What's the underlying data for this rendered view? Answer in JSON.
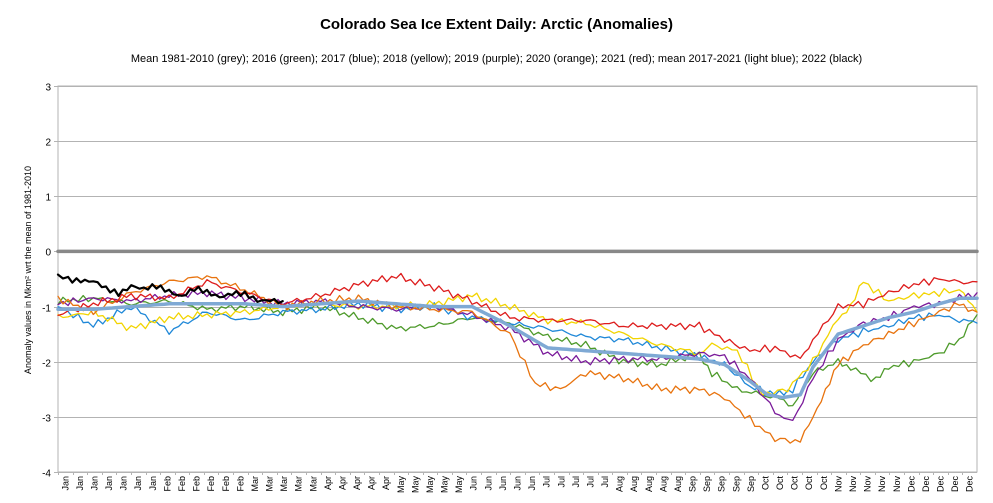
{
  "chart_data": {
    "type": "line",
    "title": "Colorado Sea Ice Extent Daily: Arctic (Anomalies)",
    "subtitle": "Mean 1981-2010 (grey); 2016 (green); 2017 (blue); 2018 (yellow); 2019 (purple); 2020 (orange); 2021 (red); mean 2017-2021 (light blue); 2022 (black)",
    "xlabel": "",
    "ylabel": "Anomaly values in Mkm² wrt the mean of 1981-2010",
    "ylim": [
      -4,
      3
    ],
    "xlim": [
      1,
      365
    ],
    "yticks": [
      3,
      2,
      1,
      0,
      -1,
      -2,
      -3,
      -4
    ],
    "x_tick_labels": [
      "Jan",
      "Jan",
      "Jan",
      "Jan",
      "Jan",
      "Jan",
      "Jan",
      "Feb",
      "Feb",
      "Feb",
      "Feb",
      "Feb",
      "Feb",
      "Mar",
      "Mar",
      "Mar",
      "Mar",
      "Mar",
      "Apr",
      "Apr",
      "Apr",
      "Apr",
      "Apr",
      "May",
      "May",
      "May",
      "May",
      "May",
      "Jun",
      "Jun",
      "Jun",
      "Jun",
      "Jun",
      "Jul",
      "Jul",
      "Jul",
      "Jul",
      "Jul",
      "Aug",
      "Aug",
      "Aug",
      "Aug",
      "Aug",
      "Sep",
      "Sep",
      "Sep",
      "Sep",
      "Sep",
      "Oct",
      "Oct",
      "Oct",
      "Oct",
      "Oct",
      "Nov",
      "Nov",
      "Nov",
      "Nov",
      "Nov",
      "Dec",
      "Dec",
      "Dec",
      "Dec",
      "Dec"
    ],
    "grid": true,
    "series": [
      {
        "name": "Mean 1981-2010",
        "color": "#888888",
        "width": 3.5,
        "x": [
          1,
          365
        ],
        "y": [
          0,
          0
        ]
      },
      {
        "name": "2016",
        "color": "#4d9a2a",
        "width": 1.3,
        "x": [
          1,
          15,
          30,
          45,
          60,
          75,
          90,
          105,
          120,
          135,
          150,
          165,
          180,
          195,
          210,
          225,
          240,
          255,
          260,
          270,
          285,
          292,
          300,
          310,
          315,
          325,
          330,
          340,
          350,
          358,
          365
        ],
        "y": [
          -0.9,
          -0.85,
          -0.95,
          -0.9,
          -1.05,
          -1.0,
          -1.1,
          -1.0,
          -1.2,
          -1.4,
          -1.35,
          -1.2,
          -1.3,
          -1.55,
          -1.7,
          -2.0,
          -2.05,
          -1.85,
          -2.2,
          -2.5,
          -2.65,
          -2.8,
          -2.2,
          -2.0,
          -2.1,
          -2.35,
          -2.1,
          -2.0,
          -1.85,
          -1.6,
          -1.15
        ]
      },
      {
        "name": "2017",
        "color": "#1f88d8",
        "width": 1.3,
        "x": [
          1,
          15,
          30,
          45,
          60,
          75,
          90,
          105,
          120,
          135,
          150,
          165,
          180,
          195,
          210,
          225,
          240,
          255,
          265,
          275,
          285,
          292,
          300,
          310,
          320,
          330,
          340,
          350,
          358,
          365
        ],
        "y": [
          -1.0,
          -1.35,
          -1.0,
          -1.45,
          -1.1,
          -1.25,
          -1.1,
          -1.05,
          -0.95,
          -1.05,
          -1.0,
          -1.2,
          -1.3,
          -1.4,
          -1.55,
          -1.6,
          -1.75,
          -1.9,
          -2.05,
          -2.45,
          -2.6,
          -2.5,
          -2.0,
          -1.6,
          -1.45,
          -1.35,
          -1.2,
          -1.15,
          -1.25,
          -1.3
        ]
      },
      {
        "name": "2018",
        "color": "#f2d400",
        "width": 1.3,
        "x": [
          1,
          15,
          30,
          45,
          60,
          75,
          90,
          105,
          120,
          135,
          150,
          165,
          180,
          195,
          210,
          225,
          240,
          255,
          260,
          270,
          280,
          290,
          300,
          310,
          315,
          320,
          330,
          340,
          350,
          358,
          365
        ],
        "y": [
          -1.2,
          -1.1,
          -1.4,
          -1.2,
          -1.15,
          -1.1,
          -1.0,
          -0.95,
          -1.0,
          -1.0,
          -0.95,
          -0.8,
          -1.0,
          -1.25,
          -1.3,
          -1.5,
          -1.7,
          -1.85,
          -1.7,
          -1.8,
          -2.6,
          -2.5,
          -2.0,
          -1.2,
          -1.0,
          -0.55,
          -0.9,
          -0.8,
          -0.75,
          -0.7,
          -1.1
        ]
      },
      {
        "name": "2019",
        "color": "#7a1a9a",
        "width": 1.3,
        "x": [
          1,
          15,
          30,
          45,
          60,
          75,
          90,
          105,
          120,
          135,
          150,
          165,
          180,
          195,
          210,
          225,
          240,
          255,
          265,
          275,
          285,
          292,
          300,
          310,
          320,
          330,
          340,
          350,
          358,
          365
        ],
        "y": [
          -0.95,
          -0.85,
          -0.9,
          -0.8,
          -0.75,
          -0.85,
          -0.95,
          -0.9,
          -1.0,
          -1.05,
          -1.0,
          -1.15,
          -1.4,
          -1.85,
          -2.0,
          -1.95,
          -1.95,
          -1.85,
          -1.9,
          -2.3,
          -2.9,
          -3.1,
          -2.3,
          -1.6,
          -1.3,
          -1.2,
          -1.0,
          -0.95,
          -0.85,
          -0.75
        ]
      },
      {
        "name": "2020",
        "color": "#e8730e",
        "width": 1.3,
        "x": [
          1,
          15,
          30,
          45,
          60,
          75,
          90,
          105,
          120,
          135,
          150,
          165,
          180,
          190,
          200,
          210,
          225,
          240,
          255,
          265,
          275,
          285,
          295,
          300,
          305,
          310,
          320,
          330,
          340,
          350,
          358,
          365
        ],
        "y": [
          -0.85,
          -1.1,
          -0.75,
          -0.55,
          -0.45,
          -0.7,
          -1.0,
          -0.9,
          -0.85,
          -1.0,
          -1.05,
          -1.1,
          -1.5,
          -2.4,
          -2.5,
          -2.2,
          -2.3,
          -2.5,
          -2.5,
          -2.65,
          -3.05,
          -3.4,
          -3.45,
          -3.0,
          -2.5,
          -2.05,
          -1.7,
          -1.5,
          -1.3,
          -1.1,
          -0.95,
          -1.1
        ]
      },
      {
        "name": "2021",
        "color": "#dd1c1c",
        "width": 1.3,
        "x": [
          1,
          15,
          30,
          45,
          60,
          75,
          90,
          105,
          120,
          135,
          150,
          165,
          180,
          195,
          210,
          225,
          240,
          255,
          265,
          275,
          285,
          295,
          300,
          310,
          320,
          330,
          340,
          350,
          358,
          365
        ],
        "y": [
          -1.15,
          -0.95,
          -0.8,
          -0.85,
          -0.55,
          -0.75,
          -0.95,
          -0.8,
          -0.6,
          -0.45,
          -0.65,
          -0.9,
          -1.2,
          -1.25,
          -1.25,
          -1.35,
          -1.35,
          -1.35,
          -1.6,
          -1.8,
          -1.75,
          -1.95,
          -1.6,
          -1.0,
          -0.95,
          -0.75,
          -0.6,
          -0.5,
          -0.55,
          -0.55
        ]
      },
      {
        "name": "mean 2017-2021",
        "color": "#7fa9d4",
        "width": 3.5,
        "x": [
          1,
          15,
          30,
          45,
          60,
          75,
          90,
          105,
          120,
          135,
          150,
          165,
          180,
          195,
          210,
          225,
          240,
          255,
          265,
          275,
          282,
          288,
          295,
          300,
          310,
          320,
          330,
          340,
          350,
          358,
          365
        ],
        "y": [
          -1.05,
          -1.05,
          -1.0,
          -0.95,
          -0.95,
          -0.95,
          -1.0,
          -0.95,
          -0.9,
          -0.95,
          -1.0,
          -1.0,
          -1.35,
          -1.75,
          -1.8,
          -1.85,
          -1.9,
          -1.95,
          -2.05,
          -2.35,
          -2.6,
          -2.65,
          -2.6,
          -2.1,
          -1.5,
          -1.35,
          -1.2,
          -1.1,
          -0.95,
          -0.85,
          -0.85
        ]
      },
      {
        "name": "2022",
        "color": "#000000",
        "width": 2.2,
        "x": [
          1,
          5,
          10,
          15,
          20,
          25,
          30,
          35,
          40,
          45,
          50,
          55,
          60,
          65,
          70,
          75,
          80,
          85,
          90
        ],
        "y": [
          -0.45,
          -0.5,
          -0.5,
          -0.55,
          -0.7,
          -0.75,
          -0.6,
          -0.7,
          -0.65,
          -0.7,
          -0.8,
          -0.7,
          -0.75,
          -0.8,
          -0.75,
          -0.8,
          -0.9,
          -0.85,
          -0.9
        ]
      }
    ]
  }
}
